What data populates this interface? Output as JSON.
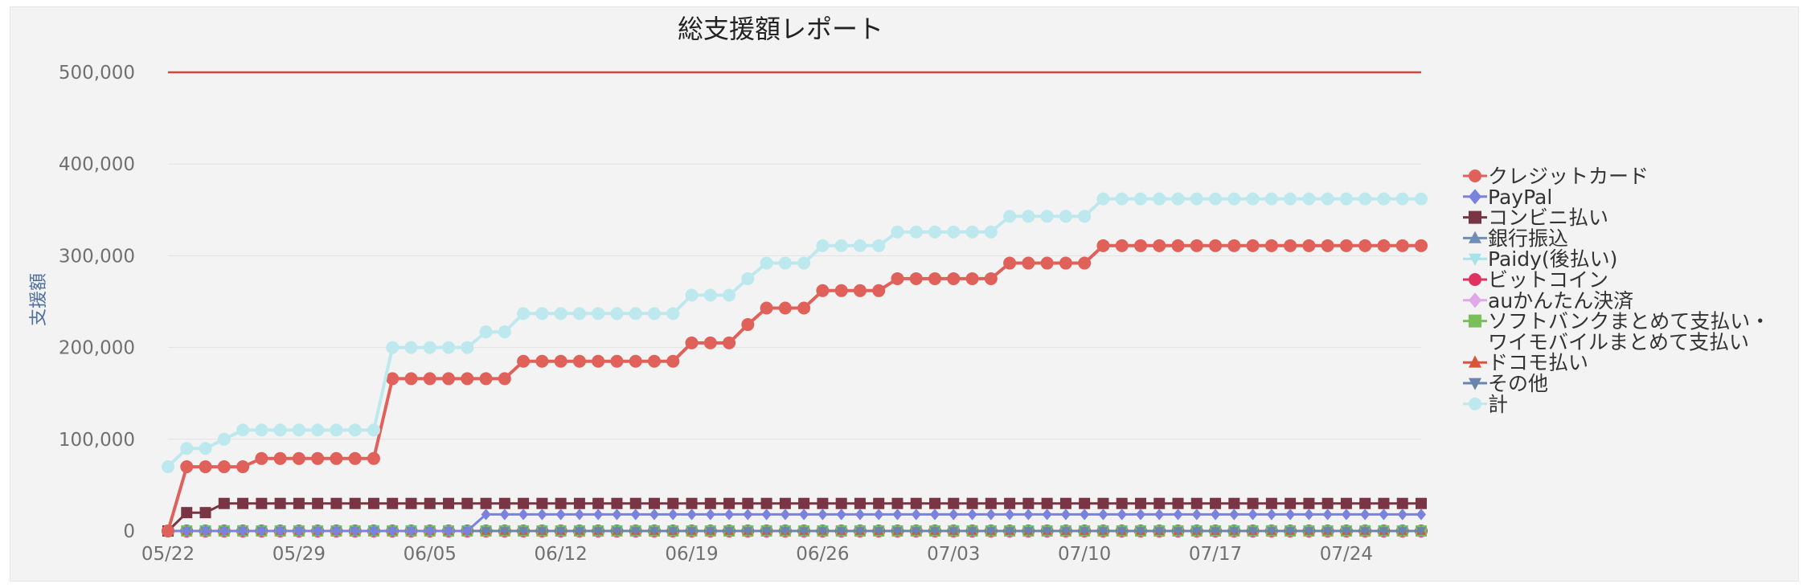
{
  "chart_data": {
    "type": "line",
    "title": "総支援額レポート",
    "ylabel": "支援額",
    "ylim": [
      0,
      500000
    ],
    "yticks": [
      0,
      100000,
      200000,
      300000,
      400000,
      500000
    ],
    "ytick_labels": [
      "0",
      "100,000",
      "200,000",
      "300,000",
      "400,000",
      "500,000"
    ],
    "xtick_labels": [
      "05/22",
      "05/29",
      "06/05",
      "06/12",
      "06/19",
      "06/26",
      "07/03",
      "07/10",
      "07/17",
      "07/24"
    ],
    "x_start_label": "05/22",
    "num_days": 68,
    "target_value": 500000,
    "target_color": "#d9453a",
    "grid": true,
    "legend_position": "right",
    "series": [
      {
        "name": "クレジットカード",
        "color": "#e0605a",
        "marker": "circle",
        "values": [
          0,
          70000,
          70000,
          70000,
          70000,
          79000,
          79000,
          79000,
          79000,
          79000,
          79000,
          79000,
          166000,
          166000,
          166000,
          166000,
          166000,
          166000,
          166000,
          185000,
          185000,
          185000,
          185000,
          185000,
          185000,
          185000,
          185000,
          185000,
          205000,
          205000,
          205000,
          225000,
          243000,
          243000,
          243000,
          262000,
          262000,
          262000,
          262000,
          275000,
          275000,
          275000,
          275000,
          275000,
          275000,
          292000,
          292000,
          292000,
          292000,
          292000,
          311000,
          311000,
          311000,
          311000,
          311000,
          311000,
          311000,
          311000,
          311000,
          311000,
          311000,
          311000,
          311000,
          311000,
          311000,
          311000,
          311000,
          311000
        ]
      },
      {
        "name": "PayPal",
        "color": "#7a82dd",
        "marker": "diamond",
        "values": [
          0,
          0,
          0,
          0,
          0,
          0,
          0,
          0,
          0,
          0,
          0,
          0,
          0,
          0,
          0,
          0,
          0,
          18000,
          18000,
          18000,
          18000,
          18000,
          18000,
          18000,
          18000,
          18000,
          18000,
          18000,
          18000,
          18000,
          18000,
          18000,
          18000,
          18000,
          18000,
          18000,
          18000,
          18000,
          18000,
          18000,
          18000,
          18000,
          18000,
          18000,
          18000,
          18000,
          18000,
          18000,
          18000,
          18000,
          18000,
          18000,
          18000,
          18000,
          18000,
          18000,
          18000,
          18000,
          18000,
          18000,
          18000,
          18000,
          18000,
          18000,
          18000,
          18000,
          18000,
          18000
        ]
      },
      {
        "name": "コンビニ払い",
        "color": "#7a3544",
        "marker": "square",
        "values": [
          0,
          20000,
          20000,
          30000,
          30000,
          30000,
          30000,
          30000,
          30000,
          30000,
          30000,
          30000,
          30000,
          30000,
          30000,
          30000,
          30000,
          30000,
          30000,
          30000,
          30000,
          30000,
          30000,
          30000,
          30000,
          30000,
          30000,
          30000,
          30000,
          30000,
          30000,
          30000,
          30000,
          30000,
          30000,
          30000,
          30000,
          30000,
          30000,
          30000,
          30000,
          30000,
          30000,
          30000,
          30000,
          30000,
          30000,
          30000,
          30000,
          30000,
          30000,
          30000,
          30000,
          30000,
          30000,
          30000,
          30000,
          30000,
          30000,
          30000,
          30000,
          30000,
          30000,
          30000,
          30000,
          30000,
          30000,
          30000
        ]
      },
      {
        "name": "銀行振込",
        "color": "#6f8db5",
        "marker": "triangle",
        "values": [
          0
        ]
      },
      {
        "name": "Paidy(後払い)",
        "color": "#a7e3e8",
        "marker": "triangle-down",
        "values": [
          0
        ]
      },
      {
        "name": "ビットコイン",
        "color": "#e0325e",
        "marker": "circle",
        "values": [
          0
        ]
      },
      {
        "name": "auかんたん決済",
        "color": "#e0a8e8",
        "marker": "diamond",
        "values": [
          0
        ]
      },
      {
        "name": "ソフトバンクまとめて支払い・ワイモバイルまとめて支払い",
        "color": "#79bf5a",
        "marker": "square",
        "values": [
          0
        ]
      },
      {
        "name": "ドコモ払い",
        "color": "#d9553a",
        "marker": "triangle",
        "values": [
          0
        ]
      },
      {
        "name": "その他",
        "color": "#6a84b0",
        "marker": "triangle-down",
        "values": [
          0
        ]
      },
      {
        "name": "計",
        "color": "#bde9ee",
        "marker": "circle",
        "values": [
          70000,
          90000,
          90000,
          100000,
          110000,
          110000,
          110000,
          110000,
          110000,
          110000,
          110000,
          110000,
          200000,
          200000,
          200000,
          200000,
          200000,
          217000,
          217000,
          237000,
          237000,
          237000,
          237000,
          237000,
          237000,
          237000,
          237000,
          237000,
          257000,
          257000,
          257000,
          275000,
          292000,
          292000,
          292000,
          311000,
          311000,
          311000,
          311000,
          326000,
          326000,
          326000,
          326000,
          326000,
          326000,
          343000,
          343000,
          343000,
          343000,
          343000,
          362000,
          362000,
          362000,
          362000,
          362000,
          362000,
          362000,
          362000,
          362000,
          362000,
          362000,
          362000,
          362000,
          362000,
          362000,
          362000,
          362000,
          362000
        ]
      }
    ],
    "legend_lines": [
      {
        "text": "クレジットカード",
        "series": 0
      },
      {
        "text": "PayPal",
        "series": 1
      },
      {
        "text": "コンビニ払い",
        "series": 2
      },
      {
        "text": "銀行振込",
        "series": 3
      },
      {
        "text": "Paidy(後払い)",
        "series": 4
      },
      {
        "text": "ビットコイン",
        "series": 5
      },
      {
        "text": "auかんたん決済",
        "series": 6
      },
      {
        "text": "ソフトバンクまとめて支払い・",
        "series": 7
      },
      {
        "text": "ワイモバイルまとめて支払い",
        "series": -1
      },
      {
        "text": "ドコモ払い",
        "series": 8
      },
      {
        "text": "その他",
        "series": 9
      },
      {
        "text": "計",
        "series": 10
      }
    ]
  }
}
